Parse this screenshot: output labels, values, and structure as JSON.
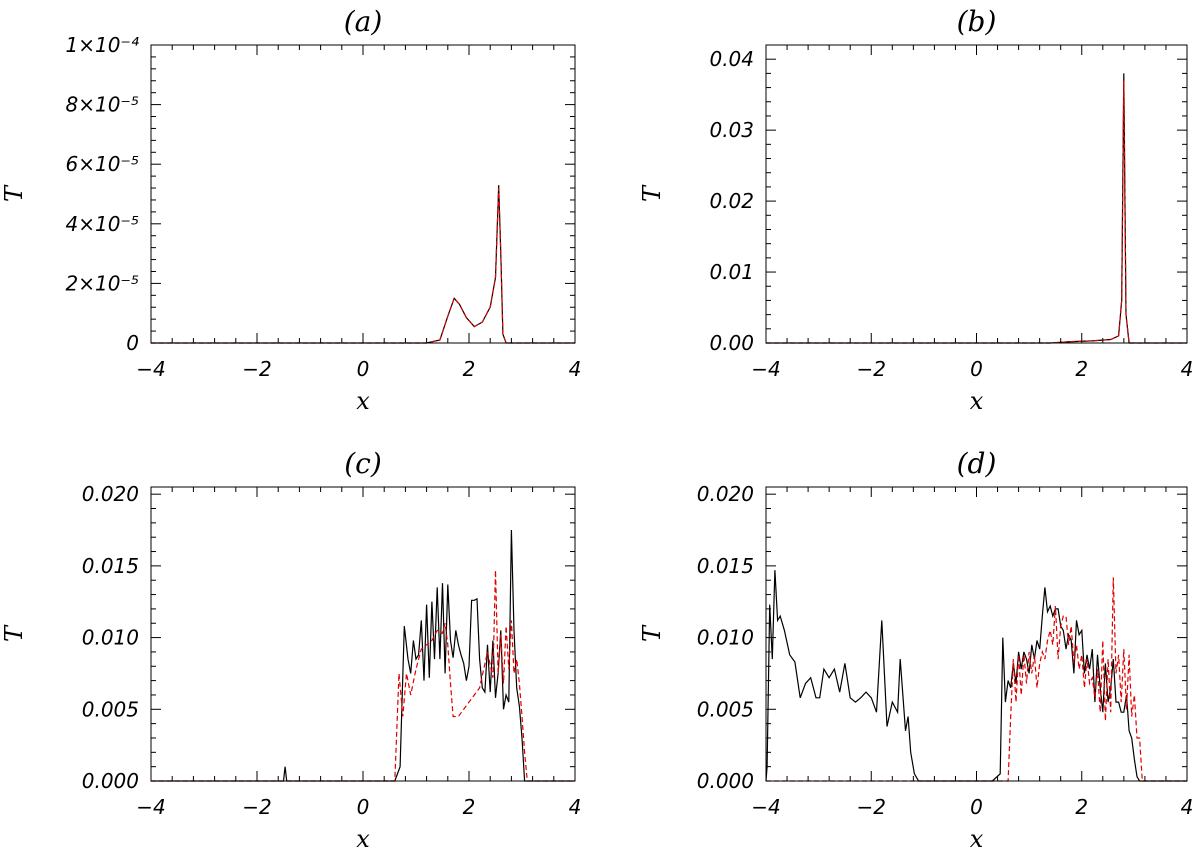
{
  "chart_data": [
    {
      "id": "a",
      "type": "line",
      "title": "(a)",
      "xlabel": "x",
      "ylabel": "T",
      "xlim": [
        -4,
        4
      ],
      "ylim": [
        0,
        0.0001
      ],
      "x_ticks": [
        -4,
        -2,
        0,
        2,
        4
      ],
      "x_tick_labels": [
        "−4",
        "−2",
        "0",
        "2",
        "4"
      ],
      "y_ticks": [
        0,
        2e-05,
        4e-05,
        6e-05,
        8e-05,
        0.0001
      ],
      "y_tick_labels": [
        "0",
        "2×10⁻⁵",
        "4×10⁻⁵",
        "6×10⁻⁵",
        "8×10⁻⁵",
        "1×10⁻⁴"
      ],
      "series": [
        {
          "style": "solid",
          "color": "#000000",
          "x": [
            -4,
            1.2,
            1.45,
            1.6,
            1.72,
            1.82,
            1.95,
            2.1,
            2.25,
            2.4,
            2.5,
            2.56,
            2.6,
            2.64,
            2.7,
            2.8,
            4
          ],
          "y": [
            0,
            0,
            1e-06,
            9e-06,
            1.5e-05,
            1.3e-05,
            8.5e-06,
            5.5e-06,
            7e-06,
            1.2e-05,
            2.2e-05,
            5.3e-05,
            3e-05,
            3e-06,
            0,
            0,
            0
          ]
        },
        {
          "style": "dashed",
          "color": "#e00000",
          "x": [
            -4,
            1.2,
            1.45,
            1.6,
            1.72,
            1.82,
            1.95,
            2.1,
            2.25,
            2.4,
            2.5,
            2.56,
            2.6,
            2.64,
            2.7,
            2.8,
            4
          ],
          "y": [
            0,
            0,
            1e-06,
            9e-06,
            1.5e-05,
            1.3e-05,
            8.5e-06,
            5.5e-06,
            7e-06,
            1.2e-05,
            2.2e-05,
            5.2e-05,
            3e-05,
            3e-06,
            0,
            0,
            0
          ]
        }
      ]
    },
    {
      "id": "b",
      "type": "line",
      "title": "(b)",
      "xlabel": "x",
      "ylabel": "T",
      "xlim": [
        -4,
        4
      ],
      "ylim": [
        0,
        0.042
      ],
      "x_ticks": [
        -4,
        -2,
        0,
        2,
        4
      ],
      "x_tick_labels": [
        "−4",
        "−2",
        "0",
        "2",
        "4"
      ],
      "y_ticks": [
        0,
        0.01,
        0.02,
        0.03,
        0.04
      ],
      "y_tick_labels": [
        "0.00",
        "0.01",
        "0.02",
        "0.03",
        "0.04"
      ],
      "series": [
        {
          "style": "solid",
          "color": "#000000",
          "x": [
            -4,
            1.4,
            1.8,
            2.2,
            2.55,
            2.7,
            2.76,
            2.8,
            2.84,
            2.9,
            4
          ],
          "y": [
            0,
            0,
            0.0002,
            0.0003,
            0.0005,
            0.001,
            0.006,
            0.038,
            0.004,
            0,
            0
          ]
        },
        {
          "style": "dashed",
          "color": "#e00000",
          "x": [
            -4,
            1.4,
            1.8,
            2.2,
            2.55,
            2.7,
            2.76,
            2.8,
            2.84,
            2.9,
            4
          ],
          "y": [
            0,
            0,
            0.0002,
            0.0003,
            0.0005,
            0.001,
            0.006,
            0.037,
            0.004,
            0,
            0
          ]
        }
      ]
    },
    {
      "id": "c",
      "type": "line",
      "title": "(c)",
      "xlabel": "x",
      "ylabel": "T",
      "xlim": [
        -4,
        4
      ],
      "ylim": [
        0,
        0.0205
      ],
      "x_ticks": [
        -4,
        -2,
        0,
        2,
        4
      ],
      "x_tick_labels": [
        "−4",
        "−2",
        "0",
        "2",
        "4"
      ],
      "y_ticks": [
        0,
        0.005,
        0.01,
        0.015,
        0.02
      ],
      "y_tick_labels": [
        "0.000",
        "0.005",
        "0.010",
        "0.015",
        "0.020"
      ],
      "series": [
        {
          "style": "solid",
          "color": "#000000",
          "x": [
            -4,
            -1.5,
            -1.47,
            -1.44,
            0.6,
            0.7,
            0.78,
            0.85,
            0.9,
            0.95,
            1.0,
            1.05,
            1.1,
            1.15,
            1.2,
            1.25,
            1.3,
            1.35,
            1.4,
            1.45,
            1.5,
            1.55,
            1.6,
            1.65,
            1.7,
            1.75,
            1.8,
            1.85,
            1.9,
            1.95,
            2.0,
            2.05,
            2.1,
            2.15,
            2.2,
            2.25,
            2.3,
            2.35,
            2.4,
            2.45,
            2.5,
            2.55,
            2.6,
            2.65,
            2.7,
            2.75,
            2.8,
            2.85,
            2.9,
            2.95,
            3.0,
            3.05,
            3.1,
            3.2,
            4
          ],
          "y": [
            0,
            0,
            0.001,
            0,
            0,
            0.001,
            0.0108,
            0.0085,
            0.0075,
            0.0098,
            0.0085,
            0.0088,
            0.0112,
            0.007,
            0.0123,
            0.0072,
            0.0125,
            0.0085,
            0.0135,
            0.0085,
            0.0138,
            0.0075,
            0.0137,
            0.0098,
            0.0086,
            0.0105,
            0.0095,
            0.0088,
            0.0082,
            0.007,
            0.008,
            0.0126,
            0.0126,
            0.0127,
            0.0085,
            0.0065,
            0.0062,
            0.0095,
            0.0062,
            0.0098,
            0.0058,
            0.0075,
            0.0105,
            0.005,
            0.006,
            0.0055,
            0.0175,
            0.0105,
            0.0065,
            0.0052,
            0.003,
            0,
            0,
            0,
            0
          ]
        },
        {
          "style": "dashed",
          "color": "#e00000",
          "x": [
            -4,
            0.6,
            0.68,
            0.75,
            0.82,
            0.9,
            1.0,
            1.1,
            1.2,
            1.3,
            1.4,
            1.5,
            1.55,
            1.6,
            1.65,
            1.7,
            1.8,
            2.0,
            2.2,
            2.35,
            2.45,
            2.5,
            2.55,
            2.6,
            2.65,
            2.7,
            2.75,
            2.8,
            2.85,
            2.9,
            2.95,
            3.0,
            3.05,
            3.1,
            4
          ],
          "y": [
            0,
            0,
            0.0075,
            0.0045,
            0.0075,
            0.006,
            0.0078,
            0.0092,
            0.0095,
            0.0098,
            0.0105,
            0.0103,
            0.011,
            0.0095,
            0.0068,
            0.0045,
            0.0045,
            0.0055,
            0.0065,
            0.009,
            0.0072,
            0.0147,
            0.0075,
            0.0102,
            0.0068,
            0.0108,
            0.0078,
            0.0112,
            0.0075,
            0.0085,
            0.0068,
            0.0045,
            0.002,
            0,
            0
          ]
        }
      ]
    },
    {
      "id": "d",
      "type": "line",
      "title": "(d)",
      "xlabel": "x",
      "ylabel": "T",
      "xlim": [
        -4,
        4
      ],
      "ylim": [
        0,
        0.0205
      ],
      "x_ticks": [
        -4,
        -2,
        0,
        2,
        4
      ],
      "x_tick_labels": [
        "−4",
        "−2",
        "0",
        "2",
        "4"
      ],
      "y_ticks": [
        0,
        0.005,
        0.01,
        0.015,
        0.02
      ],
      "y_tick_labels": [
        "0.000",
        "0.005",
        "0.010",
        "0.015",
        "0.020"
      ],
      "series": [
        {
          "style": "solid",
          "color": "#000000",
          "x": [
            -4,
            -3.98,
            -3.93,
            -3.88,
            -3.83,
            -3.78,
            -3.73,
            -3.65,
            -3.55,
            -3.45,
            -3.35,
            -3.25,
            -3.15,
            -3.05,
            -2.98,
            -2.9,
            -2.8,
            -2.7,
            -2.6,
            -2.5,
            -2.4,
            -2.3,
            -2.2,
            -2.1,
            -2.0,
            -1.9,
            -1.8,
            -1.75,
            -1.7,
            -1.6,
            -1.5,
            -1.45,
            -1.35,
            -1.3,
            -1.25,
            -1.18,
            -1.1,
            -1.0,
            0.3,
            0.45,
            0.5,
            0.55,
            0.6,
            0.65,
            0.7,
            0.75,
            0.8,
            0.85,
            0.9,
            0.95,
            1.0,
            1.05,
            1.1,
            1.15,
            1.2,
            1.25,
            1.3,
            1.35,
            1.4,
            1.45,
            1.5,
            1.55,
            1.6,
            1.65,
            1.7,
            1.75,
            1.8,
            1.85,
            1.9,
            1.95,
            2.0,
            2.05,
            2.1,
            2.15,
            2.2,
            2.25,
            2.3,
            2.35,
            2.4,
            2.45,
            2.5,
            2.55,
            2.6,
            2.65,
            2.7,
            2.75,
            2.8,
            2.85,
            2.9,
            2.95,
            3.0,
            3.05,
            3.1,
            3.2,
            4
          ],
          "y": [
            0,
            0.001,
            0.0123,
            0.0085,
            0.0147,
            0.0112,
            0.0115,
            0.0105,
            0.0088,
            0.0083,
            0.0058,
            0.0068,
            0.0072,
            0.0058,
            0.0058,
            0.0078,
            0.0072,
            0.0078,
            0.0062,
            0.0082,
            0.0058,
            0.0055,
            0.0058,
            0.0062,
            0.0058,
            0.0048,
            0.0112,
            0.0075,
            0.0038,
            0.0055,
            0.0048,
            0.0085,
            0.0035,
            0.0045,
            0.002,
            0.0005,
            0,
            0,
            0,
            0.0005,
            0.01,
            0.0055,
            0.007,
            0.0065,
            0.0082,
            0.0068,
            0.009,
            0.0078,
            0.009,
            0.0085,
            0.0075,
            0.0095,
            0.0085,
            0.0098,
            0.0092,
            0.0115,
            0.0135,
            0.0118,
            0.0122,
            0.0115,
            0.012,
            0.012,
            0.0108,
            0.0105,
            0.0092,
            0.0102,
            0.0098,
            0.0075,
            0.0112,
            0.0102,
            0.0105,
            0.0075,
            0.0088,
            0.0078,
            0.0092,
            0.0055,
            0.0088,
            0.0065,
            0.0048,
            0.0082,
            0.0055,
            0.0065,
            0.0085,
            0.0055,
            0.0055,
            0.0048,
            0.0048,
            0.006,
            0.0035,
            0.003,
            0.0015,
            0.0003,
            0,
            0,
            0
          ]
        },
        {
          "style": "dashed",
          "color": "#e00000",
          "x": [
            -4,
            0.6,
            0.65,
            0.7,
            0.75,
            0.8,
            0.85,
            0.9,
            0.95,
            1.0,
            1.05,
            1.1,
            1.15,
            1.2,
            1.25,
            1.3,
            1.35,
            1.4,
            1.45,
            1.5,
            1.55,
            1.6,
            1.65,
            1.7,
            1.75,
            1.8,
            1.85,
            1.9,
            1.95,
            2.0,
            2.05,
            2.1,
            2.15,
            2.2,
            2.25,
            2.3,
            2.35,
            2.4,
            2.45,
            2.5,
            2.55,
            2.6,
            2.65,
            2.7,
            2.75,
            2.8,
            2.85,
            2.9,
            2.95,
            3.0,
            3.05,
            3.1,
            3.15,
            4
          ],
          "y": [
            0,
            0,
            0.0045,
            0.0085,
            0.0055,
            0.0088,
            0.006,
            0.0088,
            0.0068,
            0.009,
            0.0075,
            0.0088,
            0.0065,
            0.0082,
            0.009,
            0.0085,
            0.0098,
            0.0105,
            0.0095,
            0.0122,
            0.0085,
            0.0108,
            0.0115,
            0.0115,
            0.0095,
            0.0108,
            0.0082,
            0.0095,
            0.0078,
            0.0088,
            0.0065,
            0.0085,
            0.0068,
            0.0072,
            0.0058,
            0.0078,
            0.0048,
            0.0098,
            0.0042,
            0.0085,
            0.0048,
            0.0142,
            0.0075,
            0.0088,
            0.0055,
            0.0092,
            0.005,
            0.0088,
            0.0045,
            0.006,
            0.003,
            0.003,
            0,
            0
          ]
        }
      ]
    }
  ]
}
